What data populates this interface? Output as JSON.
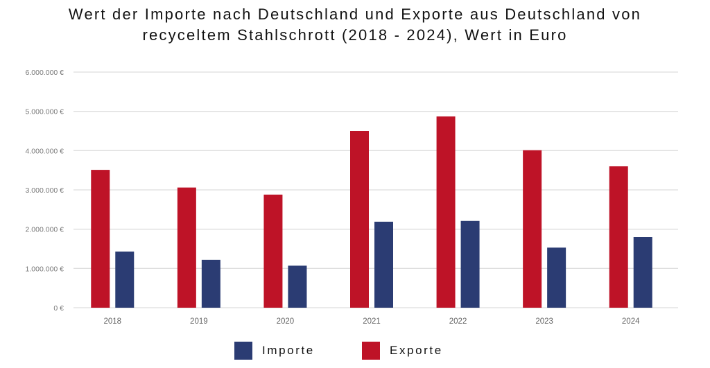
{
  "chart_data": {
    "type": "bar",
    "title": "Wert der Importe nach Deutschland und Exporte aus Deutschland von recyceltem Stahlschrott (2018 - 2024), Wert in Euro",
    "title_lines": [
      "Wert der Importe nach Deutschland und Exporte aus Deutschland von",
      "recyceltem Stahlschrott (2018 - 2024), Wert in Euro"
    ],
    "xlabel": "",
    "ylabel": "",
    "categories": [
      "2018",
      "2019",
      "2020",
      "2021",
      "2022",
      "2023",
      "2024"
    ],
    "series": [
      {
        "name": "Exporte",
        "color": "#BE1327",
        "values": [
          3510000,
          3060000,
          2880000,
          4500000,
          4870000,
          4010000,
          3600000
        ]
      },
      {
        "name": "Importe",
        "color": "#2B3C73",
        "values": [
          1430000,
          1220000,
          1070000,
          2190000,
          2210000,
          1530000,
          1800000
        ]
      }
    ],
    "ylim": [
      0,
      6000000
    ],
    "yticks": [
      0,
      1000000,
      2000000,
      3000000,
      4000000,
      5000000,
      6000000
    ],
    "ytick_labels": [
      "0 €",
      "1.000.000 €",
      "2.000.000 €",
      "3.000.000 €",
      "4.000.000 €",
      "5.000.000 €",
      "6.000.000 €"
    ],
    "grid": true,
    "legend_position": "bottom-center",
    "legend": [
      {
        "name": "Importe",
        "color": "#2B3C73"
      },
      {
        "name": "Exporte",
        "color": "#BE1327"
      }
    ]
  }
}
